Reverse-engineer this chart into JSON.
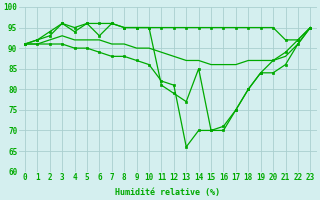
{
  "x": [
    0,
    1,
    2,
    3,
    4,
    5,
    6,
    7,
    8,
    9,
    10,
    11,
    12,
    13,
    14,
    15,
    16,
    17,
    18,
    19,
    20,
    21,
    22,
    23
  ],
  "line_top": [
    91,
    92,
    94,
    96,
    94,
    96,
    96,
    96,
    95,
    95,
    95,
    95,
    95,
    95,
    95,
    95,
    95,
    95,
    95,
    95,
    95,
    92,
    92,
    95
  ],
  "line_spiky": [
    91,
    92,
    93,
    96,
    95,
    96,
    93,
    96,
    95,
    95,
    95,
    81,
    79,
    77,
    85,
    70,
    70,
    75,
    80,
    84,
    87,
    89,
    92,
    95
  ],
  "line_mid": [
    91,
    91,
    92,
    93,
    92,
    92,
    92,
    91,
    91,
    90,
    90,
    89,
    88,
    87,
    87,
    86,
    86,
    86,
    87,
    87,
    87,
    88,
    91,
    95
  ],
  "line_low": [
    91,
    91,
    91,
    91,
    90,
    90,
    89,
    88,
    88,
    87,
    86,
    82,
    81,
    66,
    70,
    70,
    71,
    75,
    80,
    84,
    84,
    86,
    91,
    95
  ],
  "bg_color": "#d4efef",
  "grid_color": "#aacfcf",
  "line_color": "#00aa00",
  "xlabel": "Humidité relative (%)",
  "ylim": [
    60,
    100
  ],
  "xlim": [
    -0.5,
    23.5
  ],
  "yticks": [
    60,
    65,
    70,
    75,
    80,
    85,
    90,
    95,
    100
  ],
  "xticks": [
    0,
    1,
    2,
    3,
    4,
    5,
    6,
    7,
    8,
    9,
    10,
    11,
    12,
    13,
    14,
    15,
    16,
    17,
    18,
    19,
    20,
    21,
    22,
    23
  ],
  "xlabel_fontsize": 6,
  "tick_fontsize": 5.5
}
